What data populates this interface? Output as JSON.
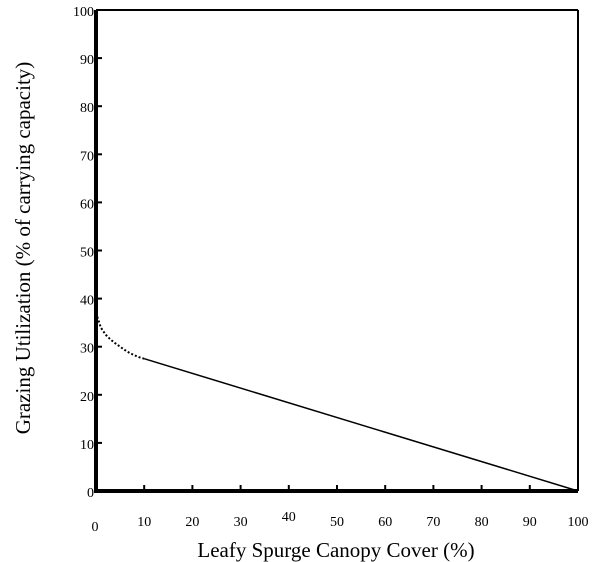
{
  "chart_data": {
    "type": "line",
    "xlabel": "Leafy Spurge Canopy Cover (%)",
    "ylabel": "Grazing Utilization (% of carrying capacity)",
    "xlim": [
      0,
      100
    ],
    "ylim": [
      0,
      100
    ],
    "x_ticks": [
      0,
      10,
      20,
      30,
      40,
      50,
      60,
      70,
      80,
      90,
      100
    ],
    "y_ticks": [
      0,
      10,
      20,
      30,
      40,
      50,
      60,
      70,
      80,
      90,
      100
    ],
    "grid": false,
    "series": [
      {
        "style": "dotted",
        "x": [
          0,
          0.5,
          1,
          2,
          3,
          4,
          5,
          6,
          7,
          8,
          9,
          10
        ],
        "y": [
          37,
          35.5,
          34,
          32.5,
          31.5,
          30.7,
          30,
          29.3,
          28.7,
          28.2,
          27.8,
          27.5
        ]
      },
      {
        "style": "solid",
        "x": [
          10,
          100
        ],
        "y": [
          27.5,
          0
        ]
      }
    ]
  }
}
